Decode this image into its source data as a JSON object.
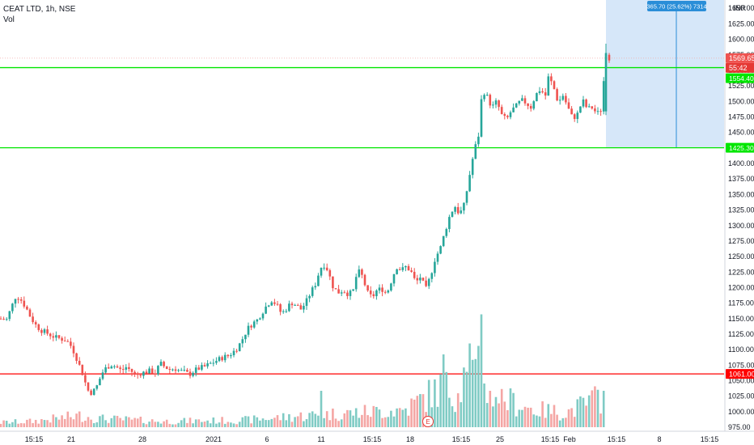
{
  "header": {
    "title": "CEAT LTD, 1h, NSE",
    "volume_label": "Vol",
    "currency": "INR"
  },
  "price_tags": {
    "last_price": "1569.65",
    "countdown": "55:42",
    "support_level": "1061.00",
    "upper_level_hidden": "1554.40",
    "lower_level_hidden": "1425.30"
  },
  "measure": {
    "label": "365.70 (25.62%) 7314"
  },
  "earnings_marker": "E",
  "colors": {
    "up": "#26a69a",
    "down": "#ef5350",
    "volume_up": "#7fcbc4",
    "volume_down": "#f4a6a4",
    "support_line": "#ff0000",
    "level_lines": "#00e600",
    "measure_fill": "#cfe3f8",
    "measure_line": "#2a8ed8",
    "last_price_tag": "#ef5350",
    "countdown_tag": "#e53935",
    "level_tag": "#00e600"
  },
  "chart_data": {
    "type": "candlestick",
    "symbol": "CEAT LTD",
    "interval": "1h",
    "exchange": "NSE",
    "y_axis": {
      "ticks": [
        975,
        1000,
        1025,
        1050,
        1075,
        1100,
        1125,
        1150,
        1175,
        1200,
        1225,
        1250,
        1275,
        1300,
        1325,
        1350,
        1375,
        1400,
        1425,
        1450,
        1475,
        1500,
        1525,
        1550,
        1575,
        1600,
        1625,
        1650
      ],
      "range": [
        965,
        1660
      ],
      "position": "right",
      "currency": "INR"
    },
    "x_axis": {
      "tick_labels": [
        "15:15",
        "21",
        "28",
        "2021",
        "6",
        "11",
        "15:15",
        "18",
        "15:15",
        "25",
        "15:15",
        "Feb",
        "15:15",
        "8",
        "15:15"
      ]
    },
    "horizontal_levels": [
      {
        "price": 1061.0,
        "color": "red"
      },
      {
        "price": 1554.4,
        "color": "green"
      },
      {
        "price": 1425.3,
        "color": "green"
      }
    ],
    "measure_box": {
      "price_from": 1425.3,
      "price_to": 1791.0,
      "change": 365.7,
      "change_pct": 25.62,
      "label": "365.70 (25.62%) 7314"
    },
    "last_price": 1569.65,
    "anchors": [
      [
        0,
        1150
      ],
      [
        8,
        1148
      ],
      [
        14,
        1168
      ],
      [
        20,
        1188
      ],
      [
        26,
        1180
      ],
      [
        32,
        1168
      ],
      [
        38,
        1152
      ],
      [
        44,
        1140
      ],
      [
        50,
        1132
      ],
      [
        56,
        1128
      ],
      [
        62,
        1124
      ],
      [
        68,
        1120
      ],
      [
        74,
        1118
      ],
      [
        80,
        1116
      ],
      [
        86,
        1110
      ],
      [
        92,
        1095
      ],
      [
        98,
        1075
      ],
      [
        103,
        1058
      ],
      [
        108,
        1035
      ],
      [
        114,
        1030
      ],
      [
        120,
        1042
      ],
      [
        126,
        1062
      ],
      [
        132,
        1072
      ],
      [
        138,
        1076
      ],
      [
        144,
        1072
      ],
      [
        150,
        1066
      ],
      [
        156,
        1072
      ],
      [
        162,
        1066
      ],
      [
        168,
        1058
      ],
      [
        174,
        1062
      ],
      [
        180,
        1064
      ],
      [
        186,
        1066
      ],
      [
        192,
        1062
      ],
      [
        198,
        1078
      ],
      [
        204,
        1072
      ],
      [
        210,
        1068
      ],
      [
        216,
        1070
      ],
      [
        222,
        1066
      ],
      [
        228,
        1064
      ],
      [
        234,
        1060
      ],
      [
        240,
        1066
      ],
      [
        246,
        1070
      ],
      [
        252,
        1072
      ],
      [
        258,
        1076
      ],
      [
        264,
        1080
      ],
      [
        270,
        1084
      ],
      [
        276,
        1088
      ],
      [
        282,
        1090
      ],
      [
        288,
        1096
      ],
      [
        294,
        1104
      ],
      [
        300,
        1118
      ],
      [
        306,
        1134
      ],
      [
        312,
        1142
      ],
      [
        318,
        1148
      ],
      [
        324,
        1160
      ],
      [
        330,
        1172
      ],
      [
        336,
        1180
      ],
      [
        342,
        1172
      ],
      [
        348,
        1158
      ],
      [
        354,
        1166
      ],
      [
        360,
        1176
      ],
      [
        366,
        1172
      ],
      [
        372,
        1165
      ],
      [
        378,
        1176
      ],
      [
        384,
        1192
      ],
      [
        390,
        1206
      ],
      [
        396,
        1232
      ],
      [
        402,
        1238
      ],
      [
        406,
        1224
      ],
      [
        412,
        1200
      ],
      [
        418,
        1192
      ],
      [
        424,
        1196
      ],
      [
        430,
        1190
      ],
      [
        436,
        1192
      ],
      [
        442,
        1228
      ],
      [
        448,
        1218
      ],
      [
        454,
        1192
      ],
      [
        460,
        1184
      ],
      [
        466,
        1196
      ],
      [
        472,
        1198
      ],
      [
        478,
        1190
      ],
      [
        484,
        1212
      ],
      [
        490,
        1234
      ],
      [
        496,
        1228
      ],
      [
        502,
        1234
      ],
      [
        508,
        1226
      ],
      [
        514,
        1208
      ],
      [
        520,
        1218
      ],
      [
        526,
        1196
      ],
      [
        532,
        1218
      ],
      [
        538,
        1248
      ],
      [
        544,
        1262
      ],
      [
        550,
        1290
      ],
      [
        556,
        1316
      ],
      [
        562,
        1332
      ],
      [
        568,
        1318
      ],
      [
        574,
        1334
      ],
      [
        580,
        1378
      ],
      [
        586,
        1420
      ],
      [
        592,
        1448
      ],
      [
        596,
        1520
      ],
      [
        602,
        1508
      ],
      [
        608,
        1490
      ],
      [
        614,
        1500
      ],
      [
        620,
        1478
      ],
      [
        626,
        1470
      ],
      [
        632,
        1485
      ],
      [
        638,
        1492
      ],
      [
        644,
        1502
      ],
      [
        650,
        1498
      ],
      [
        656,
        1490
      ],
      [
        662,
        1510
      ],
      [
        668,
        1520
      ],
      [
        674,
        1508
      ],
      [
        678,
        1540
      ],
      [
        684,
        1524
      ],
      [
        690,
        1498
      ],
      [
        696,
        1510
      ],
      [
        702,
        1490
      ],
      [
        708,
        1472
      ],
      [
        714,
        1480
      ],
      [
        720,
        1502
      ],
      [
        726,
        1488
      ],
      [
        732,
        1490
      ],
      [
        738,
        1480
      ],
      [
        744,
        1488
      ],
      [
        748,
        1570
      ]
    ],
    "volume_profile": [
      [
        0,
        0.08
      ],
      [
        40,
        0.1
      ],
      [
        100,
        0.2
      ],
      [
        120,
        0.15
      ],
      [
        200,
        0.1
      ],
      [
        300,
        0.12
      ],
      [
        380,
        0.2
      ],
      [
        440,
        0.25
      ],
      [
        500,
        0.3
      ],
      [
        548,
        0.7
      ],
      [
        560,
        0.55
      ],
      [
        575,
        0.8
      ],
      [
        590,
        0.95
      ],
      [
        600,
        0.7
      ],
      [
        620,
        0.5
      ],
      [
        660,
        0.3
      ],
      [
        700,
        0.25
      ],
      [
        748,
        0.55
      ]
    ],
    "volume_peaks": [
      [
        549,
        1.0
      ],
      [
        596,
        1.55
      ],
      [
        582,
        1.15
      ],
      [
        575,
        0.82
      ],
      [
        748,
        0.5
      ],
      [
        396,
        0.5
      ],
      [
        600,
        0.6
      ],
      [
        606,
        0.5
      ]
    ]
  }
}
